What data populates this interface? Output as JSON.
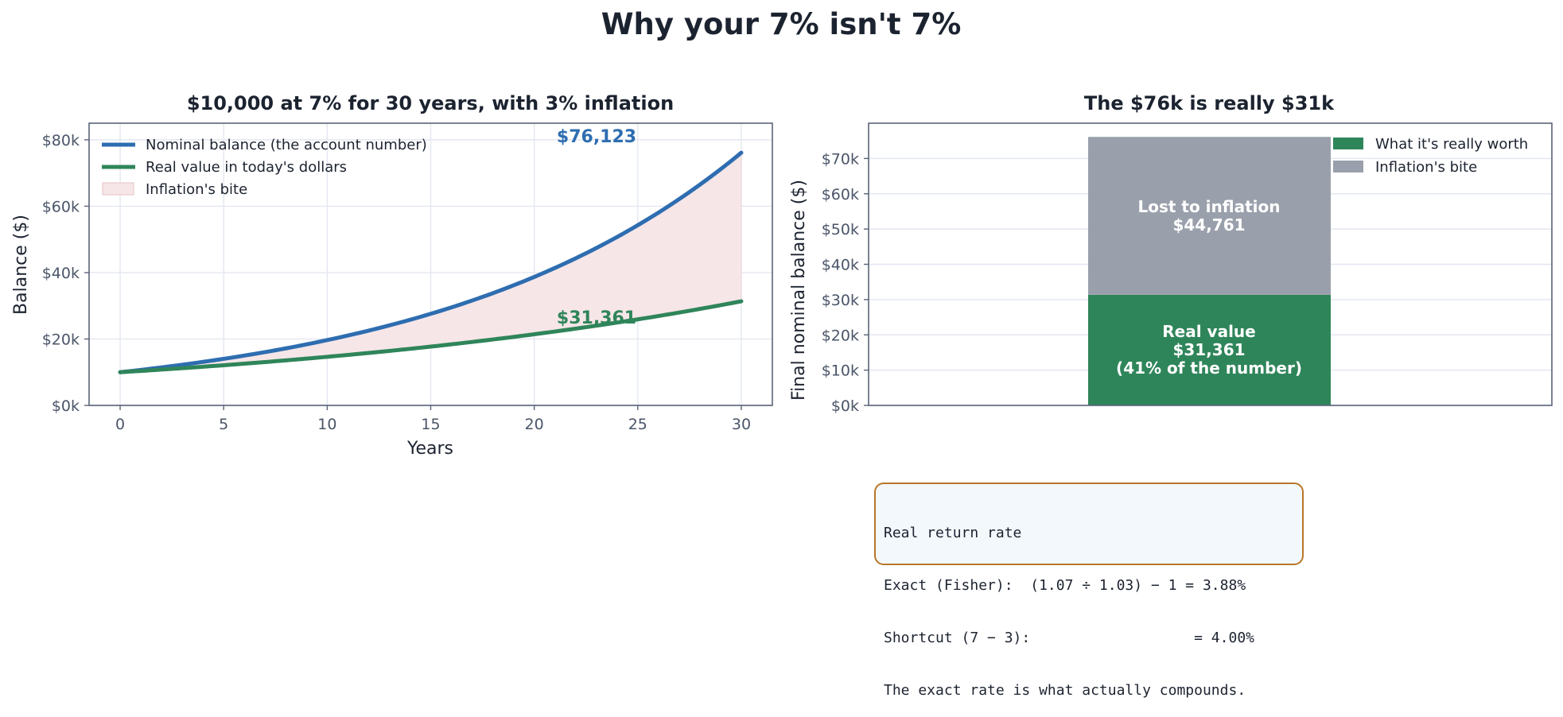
{
  "suptitle": "Why your 7% isn't 7%",
  "left": {
    "title": "$10,000 at 7% for 30 years, with 3% inflation",
    "xlabel": "Years",
    "ylabel": "Balance ($)",
    "legend": [
      "Nominal balance (the account number)",
      "Real value in today's dollars",
      "Inflation's bite"
    ],
    "end_labels": {
      "nominal": "$76,123",
      "real": "$31,361"
    }
  },
  "right": {
    "title": "The $76k is really $31k",
    "ylabel": "Final nominal balance ($)",
    "legend": [
      "What it's really worth",
      "Inflation's bite"
    ],
    "labels": {
      "lost_line1": "Lost to inflation",
      "lost_line2": "$44,761",
      "real_line1": "Real value",
      "real_line2": "$31,361",
      "real_line3": "(41% of the number)"
    }
  },
  "note": {
    "line1": "Real return rate",
    "line2": "Exact (Fisher):  (1.07 ÷ 1.03) − 1 = 3.88%",
    "line3": "Shortcut (7 − 3):                   = 4.00%",
    "line4": "The exact rate is what actually compounds."
  },
  "colors": {
    "nominal": "#2e6db0",
    "real": "#2f855a",
    "bite_fill": "#f6e6e8",
    "lost": "#9aa0ab"
  },
  "chart_data": [
    {
      "type": "line",
      "title": "$10,000 at 7% for 30 years, with 3% inflation",
      "xlabel": "Years",
      "ylabel": "Balance ($)",
      "xlim": [
        -1.5,
        31.5
      ],
      "ylim": [
        0,
        85000
      ],
      "xticks": [
        0,
        5,
        10,
        15,
        20,
        25,
        30
      ],
      "xtick_labels": [
        "0",
        "5",
        "10",
        "15",
        "20",
        "25",
        "30"
      ],
      "yticks": [
        0,
        20000,
        40000,
        60000,
        80000
      ],
      "ytick_labels": [
        "$0k",
        "$20k",
        "$40k",
        "$60k",
        "$80k"
      ],
      "grid": true,
      "legend_position": "top-left",
      "x": [
        0,
        2,
        4,
        6,
        8,
        10,
        12,
        14,
        16,
        18,
        20,
        22,
        24,
        26,
        28,
        30
      ],
      "series": [
        {
          "name": "Nominal balance (the account number)",
          "values": [
            10000,
            11449,
            13108,
            15007,
            17182,
            19672,
            22522,
            25785,
            29522,
            33799,
            38697,
            44304,
            50724,
            58074,
            66488,
            76123
          ]
        },
        {
          "name": "Real value in today's dollars",
          "values": [
            10000,
            10792,
            11646,
            12568,
            13563,
            14638,
            15796,
            17047,
            18397,
            19854,
            21426,
            23122,
            24952,
            26928,
            29059,
            31361
          ]
        }
      ],
      "shaded_between": "Inflation's bite",
      "annotations": [
        "$76,123",
        "$31,361"
      ]
    },
    {
      "type": "bar",
      "stacked": true,
      "title": "The $76k is really $31k",
      "ylabel": "Final nominal balance ($)",
      "ylim": [
        0,
        80000
      ],
      "yticks": [
        0,
        10000,
        20000,
        30000,
        40000,
        50000,
        60000,
        70000
      ],
      "ytick_labels": [
        "$0k",
        "$10k",
        "$20k",
        "$30k",
        "$40k",
        "$50k",
        "$60k",
        "$70k"
      ],
      "grid": true,
      "legend_position": "top-right",
      "series": [
        {
          "name": "What it's really worth",
          "values": [
            31361
          ]
        },
        {
          "name": "Inflation's bite",
          "values": [
            44761
          ]
        }
      ]
    }
  ]
}
